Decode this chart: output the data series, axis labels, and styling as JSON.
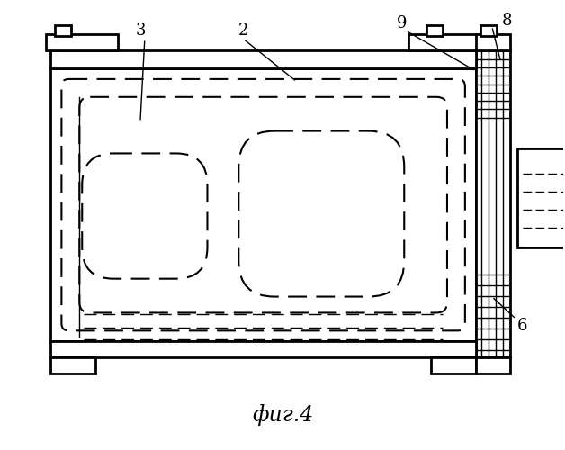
{
  "title": "фиг.4",
  "background_color": "#ffffff",
  "line_color": "#000000",
  "figsize": [
    6.28,
    5.0
  ],
  "dpi": 100
}
